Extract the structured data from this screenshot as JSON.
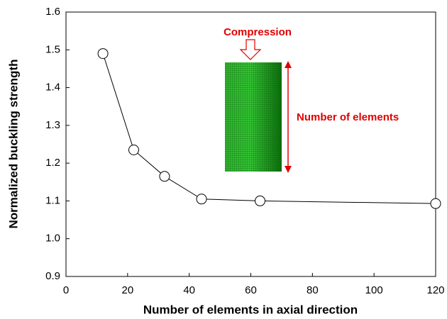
{
  "chart_data": {
    "type": "line",
    "x_label": "Number of elements in axial direction",
    "y_label": "Normalized buckling strength",
    "x": [
      12,
      22,
      32,
      44,
      63,
      120
    ],
    "series": [
      {
        "color": "#000000",
        "values": [
          1.49,
          1.235,
          1.165,
          1.105,
          1.1,
          1.093
        ]
      }
    ],
    "xlim": [
      0,
      120
    ],
    "xticks": [
      0,
      20,
      40,
      60,
      80,
      100,
      120
    ],
    "ylim": [
      0.9,
      1.6
    ],
    "yticks": [
      0.9,
      {
        "value": 1,
        "label": "1.0"
      },
      1.1,
      1.2,
      1.3,
      1.4,
      1.5,
      1.6
    ],
    "grid": false,
    "annotations": [
      "Compression",
      "Number of elements"
    ]
  }
}
